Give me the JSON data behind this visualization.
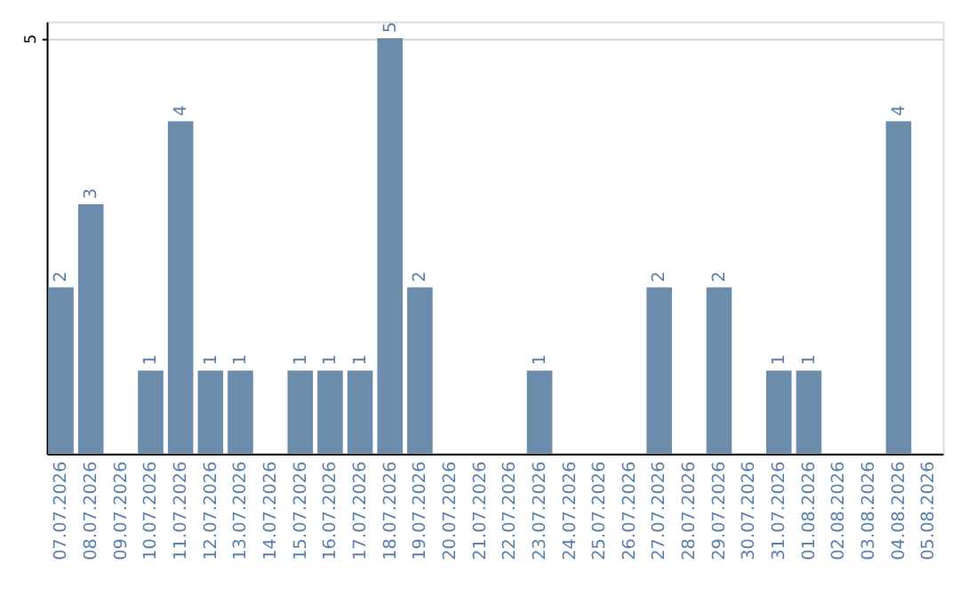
{
  "chart_data": {
    "type": "bar",
    "categories": [
      "07.07.2026",
      "08.07.2026",
      "09.07.2026",
      "10.07.2026",
      "11.07.2026",
      "12.07.2026",
      "13.07.2026",
      "14.07.2026",
      "15.07.2026",
      "16.07.2026",
      "17.07.2026",
      "18.07.2026",
      "19.07.2026",
      "20.07.2026",
      "21.07.2026",
      "22.07.2026",
      "23.07.2026",
      "24.07.2026",
      "25.07.2026",
      "26.07.2026",
      "27.07.2026",
      "28.07.2026",
      "29.07.2026",
      "30.07.2026",
      "31.07.2026",
      "01.08.2026",
      "02.08.2026",
      "03.08.2026",
      "04.08.2026",
      "05.08.2026"
    ],
    "values": [
      2,
      3,
      0,
      1,
      4,
      1,
      1,
      0,
      1,
      1,
      1,
      5,
      2,
      0,
      0,
      0,
      1,
      0,
      0,
      0,
      2,
      0,
      2,
      0,
      1,
      1,
      0,
      0,
      4,
      0
    ],
    "value_labels": [
      "2",
      "3",
      null,
      "1",
      "4",
      "1",
      "1",
      null,
      "1",
      "1",
      "1",
      "5",
      "2",
      null,
      null,
      null,
      "1",
      null,
      null,
      null,
      "2",
      null,
      "2",
      null,
      "1",
      "1",
      null,
      null,
      "4",
      null
    ],
    "color": "#6b8cab",
    "ylim": [
      0,
      5.2
    ],
    "yticks": [
      5
    ],
    "grid": "y"
  }
}
